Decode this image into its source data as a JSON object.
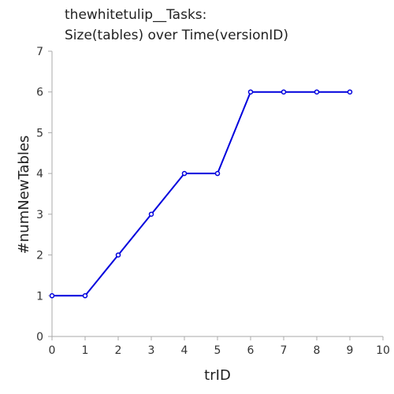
{
  "chart_data": {
    "type": "line",
    "title_lines": [
      "thewhitetulip__Tasks:",
      "Size(tables) over Time(versionID)"
    ],
    "xlabel": "trID",
    "ylabel": "#numNewTables",
    "xlim": [
      0,
      10
    ],
    "ylim": [
      0,
      7
    ],
    "xticks": [
      "0",
      "1",
      "2",
      "3",
      "4",
      "5",
      "6",
      "7",
      "8",
      "9",
      "10"
    ],
    "yticks": [
      "0",
      "1",
      "2",
      "3",
      "4",
      "5",
      "6",
      "7"
    ],
    "grid": false,
    "series": [
      {
        "color": "#0000dd",
        "x": [
          0,
          1,
          2,
          3,
          4,
          5,
          6,
          7,
          8,
          9
        ],
        "y": [
          1,
          1,
          2,
          3,
          4,
          4,
          6,
          6,
          6,
          6
        ]
      }
    ]
  }
}
